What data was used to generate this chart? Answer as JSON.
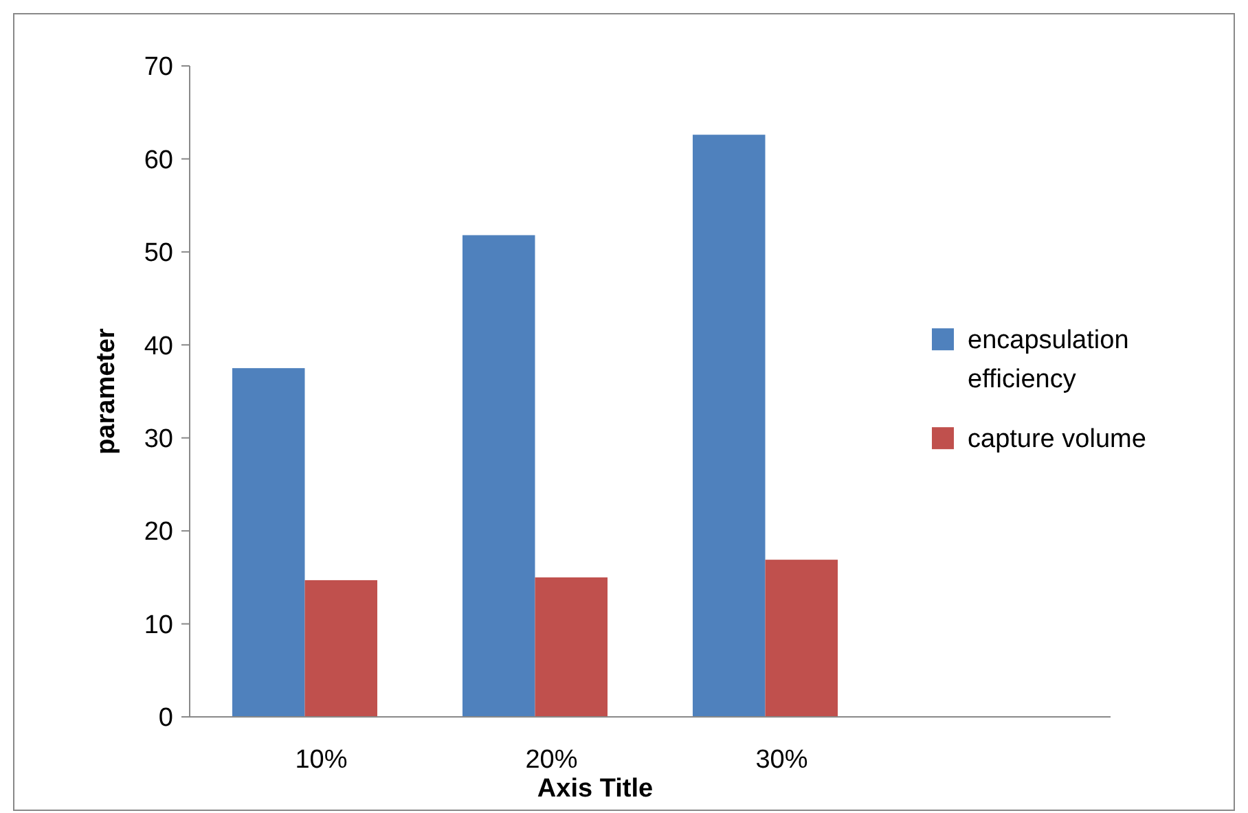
{
  "chart_data": {
    "type": "bar",
    "xlabel": "Axis Title",
    "ylabel": "parameter",
    "categories": [
      "10%",
      "20%",
      "30%",
      null
    ],
    "series": [
      {
        "name": "encapsulation efficiency",
        "color": "#4f81bd",
        "values": [
          37.5,
          51.8,
          62.6,
          null
        ]
      },
      {
        "name": "capture volume",
        "color": "#c0504d",
        "values": [
          14.7,
          15.0,
          16.9,
          null
        ]
      }
    ],
    "ylim": [
      0,
      70
    ],
    "yticks": [
      0,
      10,
      20,
      30,
      40,
      50,
      60,
      70
    ],
    "grid": false,
    "legend": "right"
  }
}
